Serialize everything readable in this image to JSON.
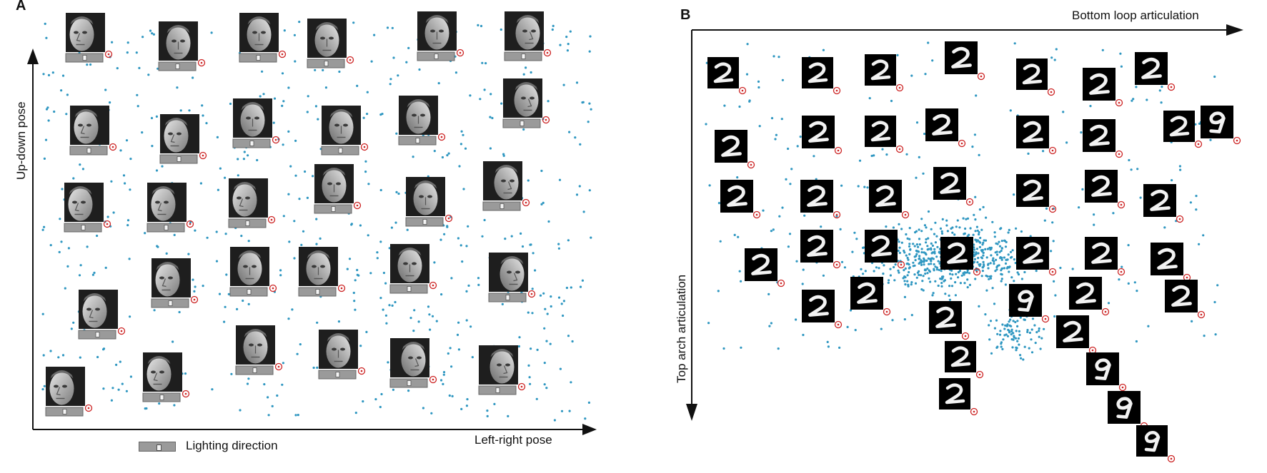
{
  "panel_a": {
    "label": "A",
    "y_axis_label": "Up-down pose",
    "x_axis_label": "Left-right pose",
    "legend_label": "Lighting direction"
  },
  "panel_b": {
    "label": "B",
    "x_axis_label": "Bottom loop articulation",
    "y_axis_label": "Top arch articulation"
  },
  "colors": {
    "dot": "#2f97c1",
    "marker": "#cc2222",
    "axis": "#111111",
    "tile_bg": "#000000",
    "face_bg": "#1e1e1e",
    "face_light": "#cfcfcf",
    "face_dark": "#6b6b6b",
    "slider_fill": "#9a9a9a"
  },
  "icons": {
    "face_tile": "face-thumbnail-icon",
    "lighting_slider": "lighting-slider-icon",
    "digit_tile": "digit-two-thumbnail-icon",
    "marker": "location-marker-icon"
  }
}
